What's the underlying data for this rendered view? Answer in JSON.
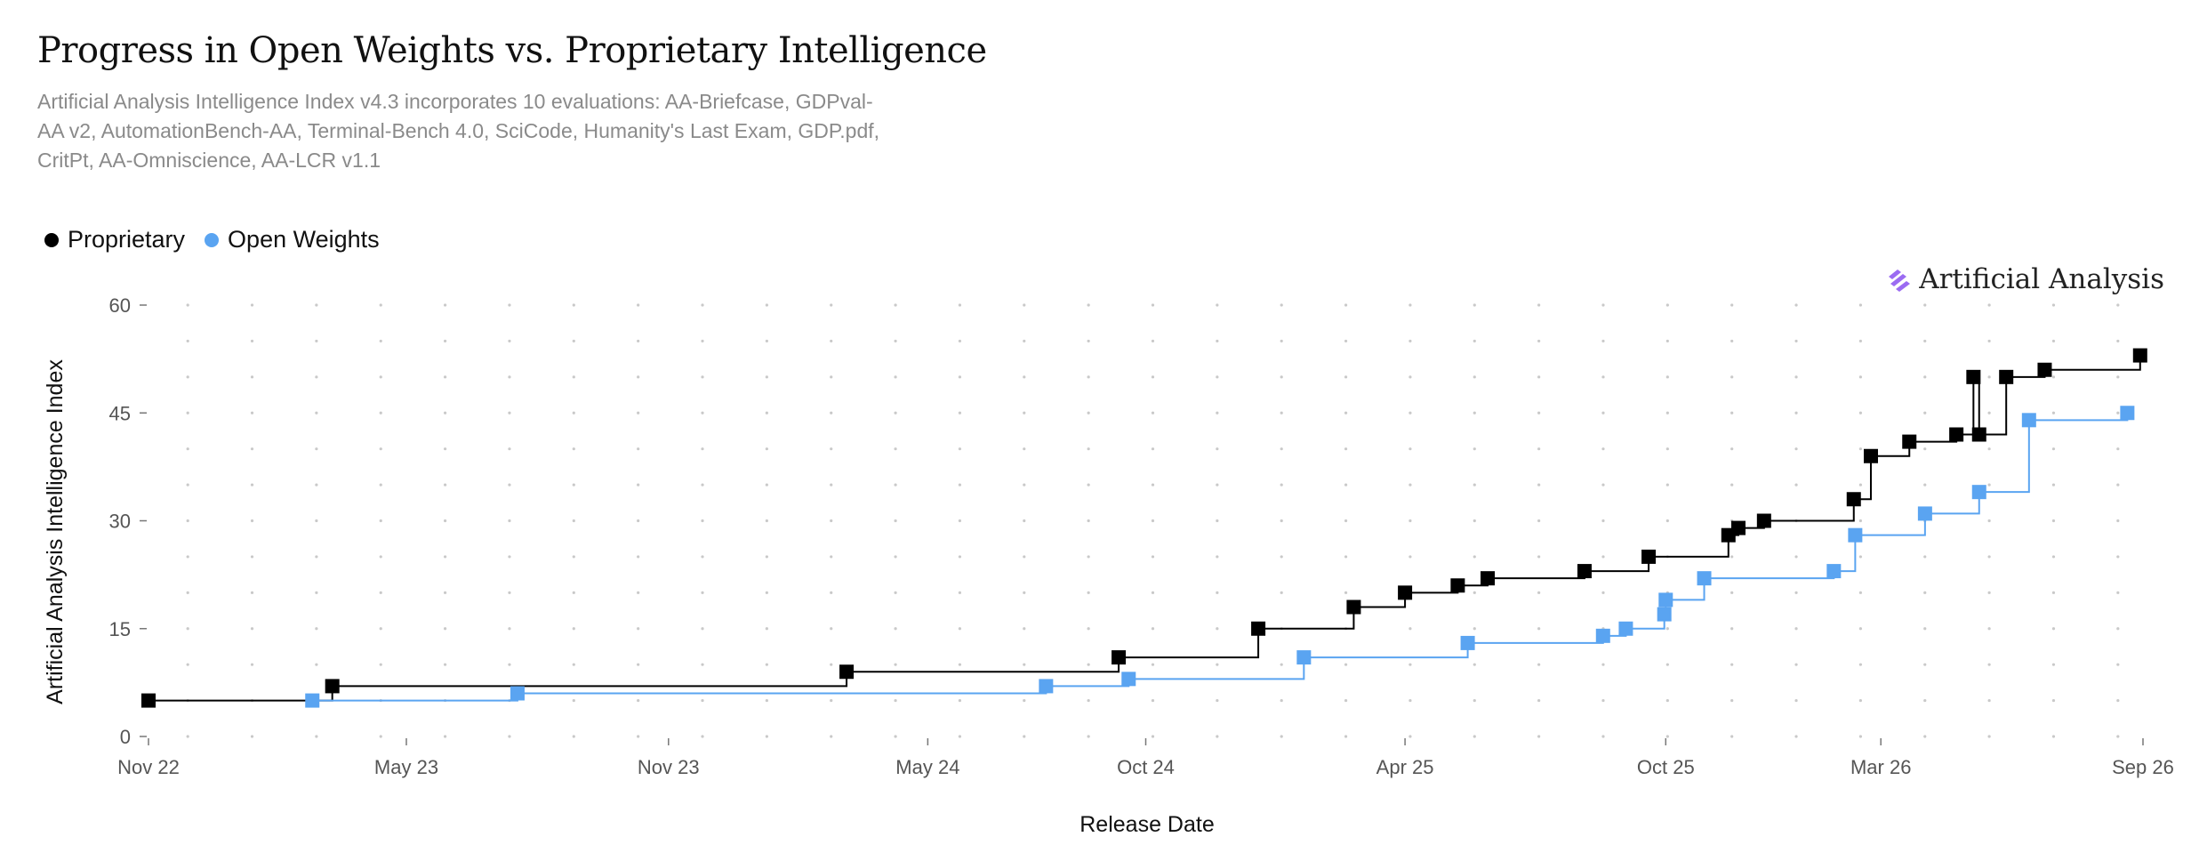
{
  "chart_data": {
    "type": "line",
    "title": "Progress in Open Weights vs. Proprietary Intelligence",
    "subtitle": "Artificial Analysis Intelligence Index v4.3 incorporates 10 evaluations: AA-Briefcase, GDPval-AA v2, AutomationBench-AA, Terminal-Bench 4.0, SciCode, Humanity's Last Exam, GDP.pdf, CritPt, AA-Omniscience, AA-LCR v1.1",
    "xlabel": "Release Date",
    "ylabel": "Artificial Analysis Intelligence Index",
    "ylim": [
      0,
      60
    ],
    "xlim": [
      "2022-11-01",
      "2026-09-01"
    ],
    "y_ticks": [
      "0",
      "15",
      "30",
      "45",
      "60"
    ],
    "x_ticks": [
      "Nov 22",
      "May 23",
      "Nov 23",
      "May 24",
      "Oct 24",
      "Apr 25",
      "Oct 25",
      "Mar 26",
      "Sep 26"
    ],
    "x_tick_dates": [
      "2022-11-01",
      "2023-05-01",
      "2023-11-01",
      "2024-05-01",
      "2024-10-01",
      "2025-04-01",
      "2025-10-01",
      "2026-03-01",
      "2026-09-01"
    ],
    "grid": "dotted",
    "legend": "top-left",
    "series": [
      {
        "name": "Proprietary",
        "color": "#000000",
        "step": true,
        "points": [
          {
            "x": "2022-11-01",
            "y": 5
          },
          {
            "x": "2023-03-10",
            "y": 7
          },
          {
            "x": "2024-03-05",
            "y": 9
          },
          {
            "x": "2024-09-12",
            "y": 11
          },
          {
            "x": "2024-12-19",
            "y": 15
          },
          {
            "x": "2025-02-24",
            "y": 18
          },
          {
            "x": "2025-04-01",
            "y": 20
          },
          {
            "x": "2025-05-08",
            "y": 21
          },
          {
            "x": "2025-05-29",
            "y": 22
          },
          {
            "x": "2025-08-05",
            "y": 23
          },
          {
            "x": "2025-09-19",
            "y": 25
          },
          {
            "x": "2025-11-14",
            "y": 28
          },
          {
            "x": "2025-11-21",
            "y": 29
          },
          {
            "x": "2025-12-09",
            "y": 30
          },
          {
            "x": "2026-02-10",
            "y": 33
          },
          {
            "x": "2026-02-22",
            "y": 39
          },
          {
            "x": "2026-03-21",
            "y": 41
          },
          {
            "x": "2026-04-23",
            "y": 42
          },
          {
            "x": "2026-05-05",
            "y": 50
          },
          {
            "x": "2026-05-09",
            "y": 42
          },
          {
            "x": "2026-05-28",
            "y": 50
          },
          {
            "x": "2026-06-24",
            "y": 51
          },
          {
            "x": "2026-08-30",
            "y": 53
          }
        ]
      },
      {
        "name": "Open Weights",
        "color": "#5aa4f1",
        "step": true,
        "points": [
          {
            "x": "2023-02-24",
            "y": 5
          },
          {
            "x": "2023-07-18",
            "y": 6
          },
          {
            "x": "2024-07-23",
            "y": 7
          },
          {
            "x": "2024-09-19",
            "y": 8
          },
          {
            "x": "2025-01-20",
            "y": 11
          },
          {
            "x": "2025-05-15",
            "y": 13
          },
          {
            "x": "2025-08-18",
            "y": 14
          },
          {
            "x": "2025-09-03",
            "y": 15
          },
          {
            "x": "2025-09-30",
            "y": 17
          },
          {
            "x": "2025-10-01",
            "y": 19
          },
          {
            "x": "2025-10-28",
            "y": 22
          },
          {
            "x": "2026-01-27",
            "y": 23
          },
          {
            "x": "2026-02-11",
            "y": 28
          },
          {
            "x": "2026-04-01",
            "y": 31
          },
          {
            "x": "2026-05-09",
            "y": 34
          },
          {
            "x": "2026-06-13",
            "y": 44
          },
          {
            "x": "2026-08-21",
            "y": 45
          }
        ]
      }
    ]
  },
  "legend_items": [
    {
      "label": "Proprietary",
      "color": "#000000"
    },
    {
      "label": "Open Weights",
      "color": "#5aa4f1"
    }
  ],
  "brand": {
    "name": "Artificial Analysis",
    "icon": "artificial-analysis-logo-icon",
    "color": "#9b6bf2"
  }
}
